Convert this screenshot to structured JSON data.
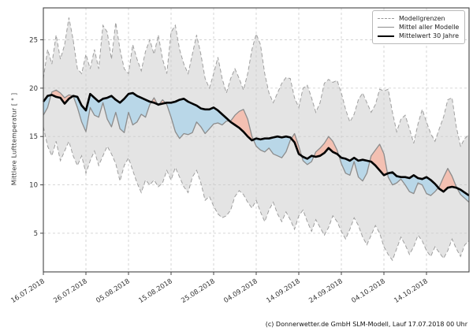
{
  "figure": {
    "caption": "(c) Donnerwetter.de GmbH SLM-Modell, Lauf 17.07.2018 00 Uhr"
  },
  "chart_data": {
    "type": "line",
    "title": "",
    "xlabel": "",
    "ylabel": "Mittlere Lufttemperatur [ ° ]",
    "ylim": [
      1.0,
      28.3
    ],
    "yticks": [
      5,
      10,
      15,
      20,
      25
    ],
    "xtick_days": [
      0,
      10,
      20,
      30,
      40,
      50,
      60,
      70,
      80,
      90
    ],
    "xtick_labels": [
      "16.07.2018",
      "26.07.2018",
      "05.08.2018",
      "15.08.2018",
      "25.08.2018",
      "04.09.2018",
      "14.09.2018",
      "24.09.2018",
      "04.10.2018",
      "14.10.2018"
    ],
    "grid": true,
    "legend_position": "upper right",
    "legend": [
      {
        "label": "Modellgrenzen",
        "style": "dashed",
        "color": "#9a9a9a"
      },
      {
        "label": "Mittel aller Modelle",
        "style": "solid",
        "color": "#8c8c8c"
      },
      {
        "label": "Mittelwert 30 Jahre",
        "style": "solid-thick",
        "color": "#000000"
      }
    ],
    "colors": {
      "band_fill": "#c9c9c9",
      "band_edge": "#9f9f9f",
      "fill_model_above_30y": "#f3c0b2",
      "fill_model_below_30y": "#b9d7e8",
      "model_mean_line": "#8c8c8c",
      "mean_30y_line": "#000000",
      "grid_line": "#d2d2d2",
      "frame": "#444444",
      "text": "#333333"
    },
    "x_days": [
      0,
      1,
      2,
      3,
      4,
      5,
      6,
      7,
      8,
      9,
      10,
      11,
      12,
      13,
      14,
      15,
      16,
      17,
      18,
      19,
      20,
      21,
      22,
      23,
      24,
      25,
      26,
      27,
      28,
      29,
      30,
      31,
      32,
      33,
      34,
      35,
      36,
      37,
      38,
      39,
      40,
      41,
      42,
      43,
      44,
      45,
      46,
      47,
      48,
      49,
      50,
      51,
      52,
      53,
      54,
      55,
      56,
      57,
      58,
      59,
      60,
      61,
      62,
      63,
      64,
      65,
      66,
      67,
      68,
      69,
      70,
      71,
      72,
      73,
      74,
      75,
      76,
      77,
      78,
      79,
      80,
      81,
      82,
      83,
      84,
      85,
      86,
      87,
      88,
      89,
      90,
      91,
      92,
      93,
      94,
      95,
      96,
      97,
      98,
      99,
      100
    ],
    "series": [
      {
        "name": "Modellgrenzen (obere Grenze)",
        "role": "upper_bound",
        "style": "dashed",
        "color": "#9f9f9f",
        "values": [
          21.0,
          24.0,
          22.5,
          25.5,
          23.0,
          24.5,
          27.3,
          25.0,
          22.0,
          21.5,
          23.5,
          22.0,
          24.0,
          22.0,
          26.5,
          25.8,
          23.0,
          26.8,
          24.0,
          22.0,
          21.5,
          24.5,
          23.0,
          21.8,
          23.8,
          25.0,
          23.5,
          25.5,
          23.0,
          21.5,
          25.8,
          26.5,
          24.0,
          22.5,
          21.5,
          23.5,
          25.5,
          23.5,
          21.0,
          20.0,
          21.5,
          23.2,
          21.0,
          19.5,
          21.0,
          22.0,
          21.0,
          19.8,
          21.5,
          24.0,
          25.6,
          24.5,
          21.5,
          19.5,
          18.5,
          19.5,
          20.5,
          21.1,
          21.0,
          19.0,
          18.0,
          20.0,
          20.3,
          19.0,
          17.5,
          18.5,
          20.5,
          20.9,
          20.6,
          20.8,
          19.5,
          17.8,
          16.5,
          17.3,
          18.8,
          19.5,
          18.5,
          17.5,
          18.3,
          19.9,
          19.7,
          19.9,
          17.5,
          15.5,
          16.8,
          17.2,
          15.8,
          14.3,
          16.3,
          17.8,
          16.5,
          15.3,
          14.5,
          15.8,
          17.0,
          18.8,
          19.0,
          16.0,
          14.0,
          14.8,
          15.2
        ]
      },
      {
        "name": "Modellgrenzen (untere Grenze)",
        "role": "lower_bound",
        "style": "dashed",
        "color": "#9f9f9f",
        "values": [
          16.0,
          14.0,
          13.0,
          14.5,
          12.5,
          13.5,
          14.5,
          13.0,
          12.0,
          13.0,
          11.2,
          12.5,
          13.5,
          12.0,
          13.0,
          14.0,
          13.2,
          12.2,
          10.4,
          12.0,
          12.8,
          11.5,
          10.2,
          9.2,
          10.5,
          10.0,
          10.5,
          9.8,
          10.2,
          11.5,
          10.5,
          11.8,
          10.8,
          9.8,
          9.2,
          10.8,
          11.5,
          10.2,
          8.4,
          8.8,
          7.8,
          7.0,
          6.6,
          6.8,
          7.4,
          8.8,
          9.4,
          9.0,
          8.2,
          7.6,
          8.4,
          7.2,
          6.2,
          7.4,
          8.2,
          7.0,
          6.2,
          7.2,
          6.4,
          5.4,
          6.8,
          7.4,
          6.2,
          5.2,
          6.4,
          5.6,
          4.8,
          5.6,
          6.8,
          6.2,
          5.2,
          4.4,
          5.4,
          6.6,
          5.8,
          4.6,
          3.8,
          4.8,
          5.8,
          5.0,
          3.6,
          2.8,
          2.2,
          3.4,
          4.6,
          3.8,
          2.8,
          3.6,
          4.8,
          4.2,
          3.2,
          2.6,
          3.6,
          3.0,
          2.4,
          3.2,
          4.4,
          3.4,
          2.6,
          3.8,
          4.2
        ]
      },
      {
        "name": "Mittel aller Modelle",
        "role": "model_mean",
        "style": "solid",
        "color": "#8c8c8c",
        "values": [
          17.2,
          18.0,
          19.6,
          19.8,
          19.5,
          19.0,
          19.3,
          19.2,
          18.0,
          16.5,
          15.5,
          18.0,
          17.2,
          17.0,
          18.5,
          16.8,
          16.0,
          17.5,
          15.8,
          15.4,
          17.5,
          16.2,
          16.5,
          17.3,
          17.0,
          18.3,
          19.0,
          18.2,
          18.8,
          18.3,
          17.0,
          15.5,
          14.8,
          15.3,
          15.2,
          15.4,
          16.5,
          16.0,
          15.3,
          15.8,
          16.3,
          16.4,
          16.2,
          16.6,
          16.6,
          17.2,
          17.6,
          17.8,
          16.8,
          15.0,
          14.0,
          13.6,
          13.4,
          13.8,
          13.2,
          13.0,
          12.8,
          13.4,
          14.6,
          15.3,
          14.0,
          12.5,
          12.1,
          12.4,
          13.4,
          13.8,
          14.3,
          15.0,
          14.5,
          13.6,
          12.2,
          11.2,
          11.0,
          12.4,
          10.8,
          10.4,
          11.2,
          13.0,
          13.6,
          14.2,
          13.2,
          10.8,
          10.0,
          10.2,
          10.6,
          10.0,
          9.3,
          9.1,
          10.2,
          10.0,
          9.1,
          8.9,
          9.3,
          9.8,
          10.8,
          11.7,
          10.9,
          9.8,
          9.0,
          8.6,
          8.2
        ]
      },
      {
        "name": "Mittelwert 30 Jahre",
        "role": "mean_30y",
        "style": "solid-thick",
        "color": "#000000",
        "values": [
          18.6,
          19.2,
          19.3,
          19.1,
          19.0,
          18.4,
          18.9,
          19.2,
          19.1,
          18.2,
          17.7,
          19.4,
          19.0,
          18.6,
          18.9,
          19.0,
          19.2,
          18.8,
          18.5,
          18.9,
          19.4,
          19.5,
          19.2,
          19.0,
          18.8,
          18.6,
          18.5,
          18.3,
          18.4,
          18.5,
          18.5,
          18.6,
          18.8,
          18.9,
          18.6,
          18.4,
          18.2,
          17.9,
          17.8,
          17.8,
          18.0,
          17.7,
          17.3,
          16.9,
          16.5,
          16.2,
          15.9,
          15.5,
          15.0,
          14.6,
          14.8,
          14.7,
          14.8,
          14.8,
          14.9,
          15.0,
          14.9,
          15.0,
          14.9,
          14.4,
          13.2,
          12.9,
          12.7,
          13.0,
          12.9,
          13.0,
          13.3,
          13.8,
          13.4,
          13.2,
          12.8,
          12.7,
          12.5,
          12.8,
          12.5,
          12.6,
          12.5,
          12.4,
          12.0,
          11.5,
          11.0,
          11.2,
          11.3,
          10.9,
          10.8,
          10.8,
          10.7,
          11.0,
          10.7,
          10.6,
          10.8,
          10.5,
          10.1,
          9.6,
          9.3,
          9.7,
          9.8,
          9.7,
          9.5,
          9.2,
          8.9
        ]
      }
    ]
  }
}
